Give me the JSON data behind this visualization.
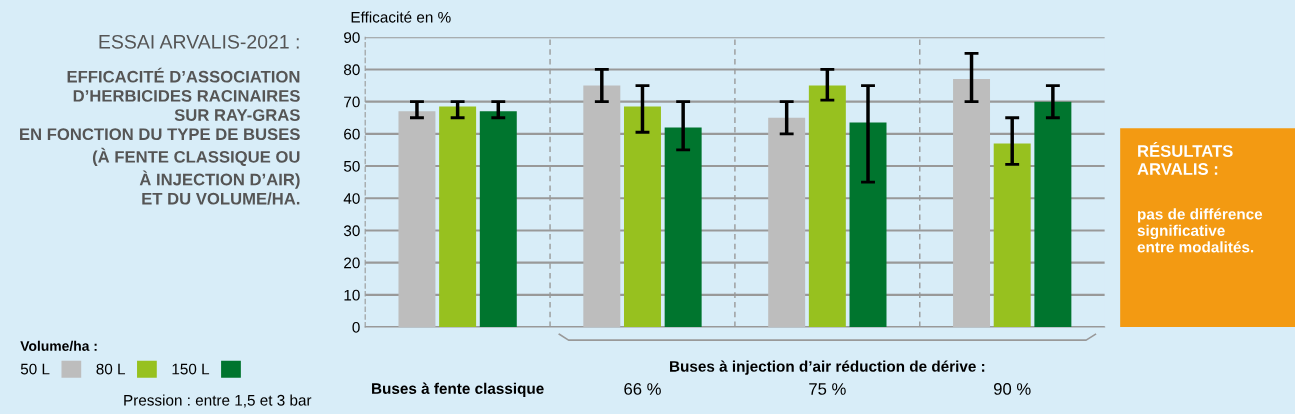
{
  "chart_data": {
    "type": "bar",
    "title": "ESSAI ARVALIS-2021 :",
    "subtitle": "EFFICACITÉ D’ASSOCIATION\nD’HERBICIDES RACINAIRES\nSUR RAY-GRAS\nEN FONCTION DU TYPE DE BUSES\n(À FENTE CLASSIQUE OU\nÀ INJECTION D’AIR)\nET DU VOLUME/HA.",
    "ylabel": "Efficacité en %",
    "categories": [
      "Buses à fente classique",
      "66 %",
      "75 %",
      "90 %"
    ],
    "series": [
      {
        "name": "50 L",
        "color": "#bdbdbd",
        "values": [
          67,
          75,
          65,
          77
        ],
        "errors": [
          [
            65,
            70
          ],
          [
            70,
            80
          ],
          [
            60,
            70
          ],
          [
            70,
            85
          ]
        ]
      },
      {
        "name": "80 L",
        "color": "#97c11f",
        "values": [
          68.5,
          68.5,
          75,
          57
        ],
        "errors": [
          [
            65,
            70
          ],
          [
            60.5,
            75
          ],
          [
            70.5,
            80
          ],
          [
            50.5,
            65
          ]
        ]
      },
      {
        "name": "150 L",
        "color": "#00752e",
        "values": [
          67,
          62,
          63.5,
          70
        ],
        "errors": [
          [
            65,
            70
          ],
          [
            55,
            70
          ],
          [
            45,
            75
          ],
          [
            65,
            75
          ]
        ]
      }
    ],
    "legend_title": "Volume/ha :",
    "legend": "bottom left",
    "ylim": [
      0,
      90
    ],
    "yticks": [
      0,
      10,
      20,
      30,
      40,
      50,
      60,
      70,
      80,
      90
    ],
    "grid": "y",
    "annotations": [
      "Buses à injection d’air réduction de dérive :",
      "Pression : entre 1,5 et 3 bar",
      "RÉSULTATS\nARVALIS :",
      "pas de différence\nsignificative\nentre modalités."
    ]
  }
}
